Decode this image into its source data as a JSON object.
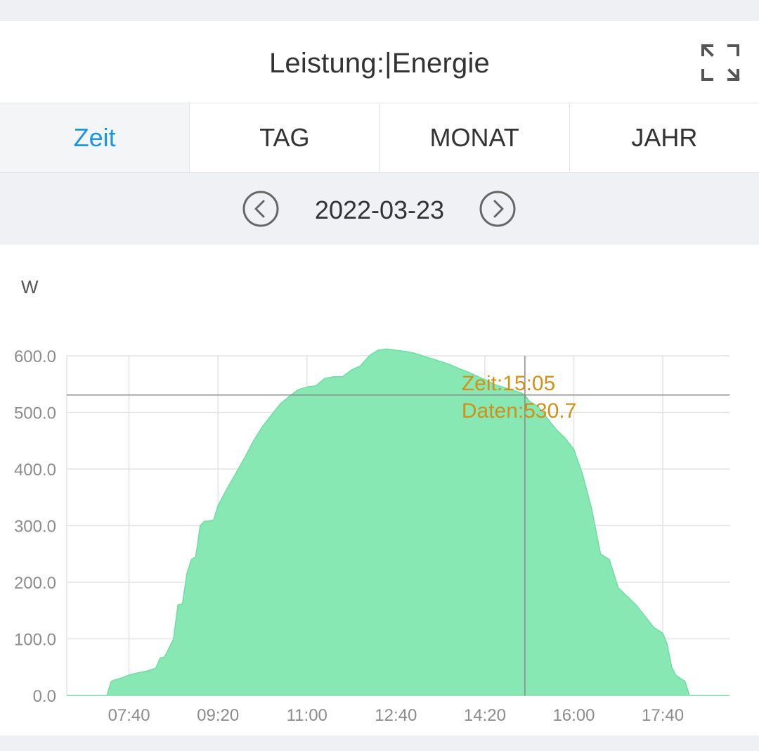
{
  "header": {
    "title": "Leistung:|Energie",
    "expand_icon": "expand-icon"
  },
  "tabs": [
    {
      "label": "Zeit",
      "active": true
    },
    {
      "label": "TAG",
      "active": false
    },
    {
      "label": "MONAT",
      "active": false
    },
    {
      "label": "JAHR",
      "active": false
    }
  ],
  "date_nav": {
    "date": "2022-03-23",
    "prev_icon": "chevron-left-icon",
    "next_icon": "chevron-right-icon"
  },
  "colors": {
    "accent": "#1a96e6",
    "area_fill": "#87e8b4",
    "area_stroke": "#6fdca2",
    "tooltip_text": "#d39019",
    "crosshair": "#8a8a8a"
  },
  "chart_data": {
    "type": "area",
    "ylabel": "W",
    "ylim": [
      0,
      600
    ],
    "yticks": [
      0,
      100,
      200,
      300,
      400,
      500,
      600
    ],
    "ytick_labels": [
      "0.0",
      "100.0",
      "200.0",
      "300.0",
      "400.0",
      "500.0",
      "600.0"
    ],
    "xlim": [
      "06:30",
      "18:55"
    ],
    "xticks": [
      "07:40",
      "09:20",
      "11:00",
      "12:40",
      "14:20",
      "16:00",
      "17:40"
    ],
    "grid": true,
    "legend": "none",
    "series": [
      {
        "x": [
          "06:30",
          "07:15",
          "07:20",
          "07:25",
          "07:30",
          "07:40",
          "07:50",
          "08:00",
          "08:10",
          "08:15",
          "08:20",
          "08:25",
          "08:30",
          "08:35",
          "08:40",
          "08:45",
          "08:50",
          "08:55",
          "09:00",
          "09:05",
          "09:10",
          "09:15",
          "09:20",
          "09:30",
          "09:40",
          "09:50",
          "10:00",
          "10:10",
          "10:20",
          "10:30",
          "10:40",
          "10:50",
          "11:00",
          "11:10",
          "11:20",
          "11:30",
          "11:40",
          "11:50",
          "12:00",
          "12:10",
          "12:20",
          "12:30",
          "12:40",
          "12:50",
          "13:00",
          "13:10",
          "13:20",
          "13:30",
          "13:40",
          "13:50",
          "14:00",
          "14:10",
          "14:20",
          "14:30",
          "14:40",
          "14:50",
          "15:00",
          "15:05",
          "15:10",
          "15:20",
          "15:30",
          "15:40",
          "15:50",
          "16:00",
          "16:10",
          "16:20",
          "16:30",
          "16:40",
          "16:50",
          "17:00",
          "17:10",
          "17:20",
          "17:30",
          "17:40",
          "17:45",
          "17:50",
          "17:55",
          "18:00",
          "18:05",
          "18:10",
          "18:20"
        ],
        "y": [
          0,
          0,
          25,
          28,
          30,
          36,
          40,
          43,
          48,
          66,
          68,
          84,
          100,
          160,
          162,
          215,
          240,
          245,
          300,
          308,
          308,
          310,
          335,
          365,
          392,
          420,
          450,
          475,
          495,
          515,
          528,
          540,
          545,
          547,
          560,
          563,
          563,
          575,
          582,
          600,
          610,
          612,
          610,
          608,
          605,
          600,
          595,
          590,
          585,
          578,
          572,
          565,
          558,
          550,
          545,
          540,
          535,
          530.7,
          520,
          510,
          490,
          470,
          455,
          435,
          390,
          330,
          250,
          240,
          190,
          175,
          160,
          140,
          120,
          110,
          90,
          50,
          35,
          30,
          25,
          0,
          0
        ]
      }
    ],
    "tooltip": {
      "time_label": "Zeit:15:05",
      "value_label": "Daten:530.7",
      "time": "15:05",
      "value": 530.7
    }
  }
}
